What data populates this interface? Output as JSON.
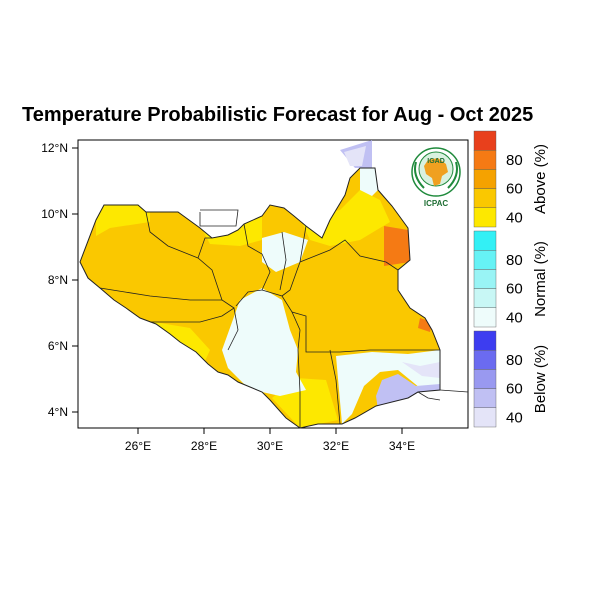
{
  "title": "Temperature Probabilistic Forecast for Aug - Oct 2025",
  "logo": {
    "text_top": "IGAD",
    "text_bottom": "ICPAC"
  },
  "axes": {
    "x_ticks": [
      "26°E",
      "28°E",
      "30°E",
      "32°E",
      "34°E"
    ],
    "y_ticks": [
      "12°N",
      "10°N",
      "8°N",
      "6°N",
      "4°N"
    ]
  },
  "colorbar": {
    "groups": [
      {
        "name": "Above (%)",
        "labels": [
          "80",
          "60",
          "40"
        ],
        "colors": [
          "#e8401c",
          "#f57a14",
          "#f5a200",
          "#fac800",
          "#fde800"
        ]
      },
      {
        "name": "Normal (%)",
        "labels": [
          "80",
          "60",
          "40"
        ],
        "colors": [
          "#33f0f5",
          "#66f2f5",
          "#99f4f5",
          "#c8f7f5",
          "#eefcfb"
        ]
      },
      {
        "name": "Below (%)",
        "labels": [
          "80",
          "60",
          "40"
        ],
        "colors": [
          "#3d3df0",
          "#6b6bf0",
          "#9999f0",
          "#c0c0f3",
          "#e4e4f8"
        ]
      }
    ]
  },
  "colors": {
    "above_main": "#fac800",
    "above_light": "#fde800",
    "above_strong": "#f5a200",
    "above_hot": "#f57a14",
    "normal": "#eefcfb",
    "below": "#c0c0f3",
    "below_light": "#e4e4f8"
  }
}
